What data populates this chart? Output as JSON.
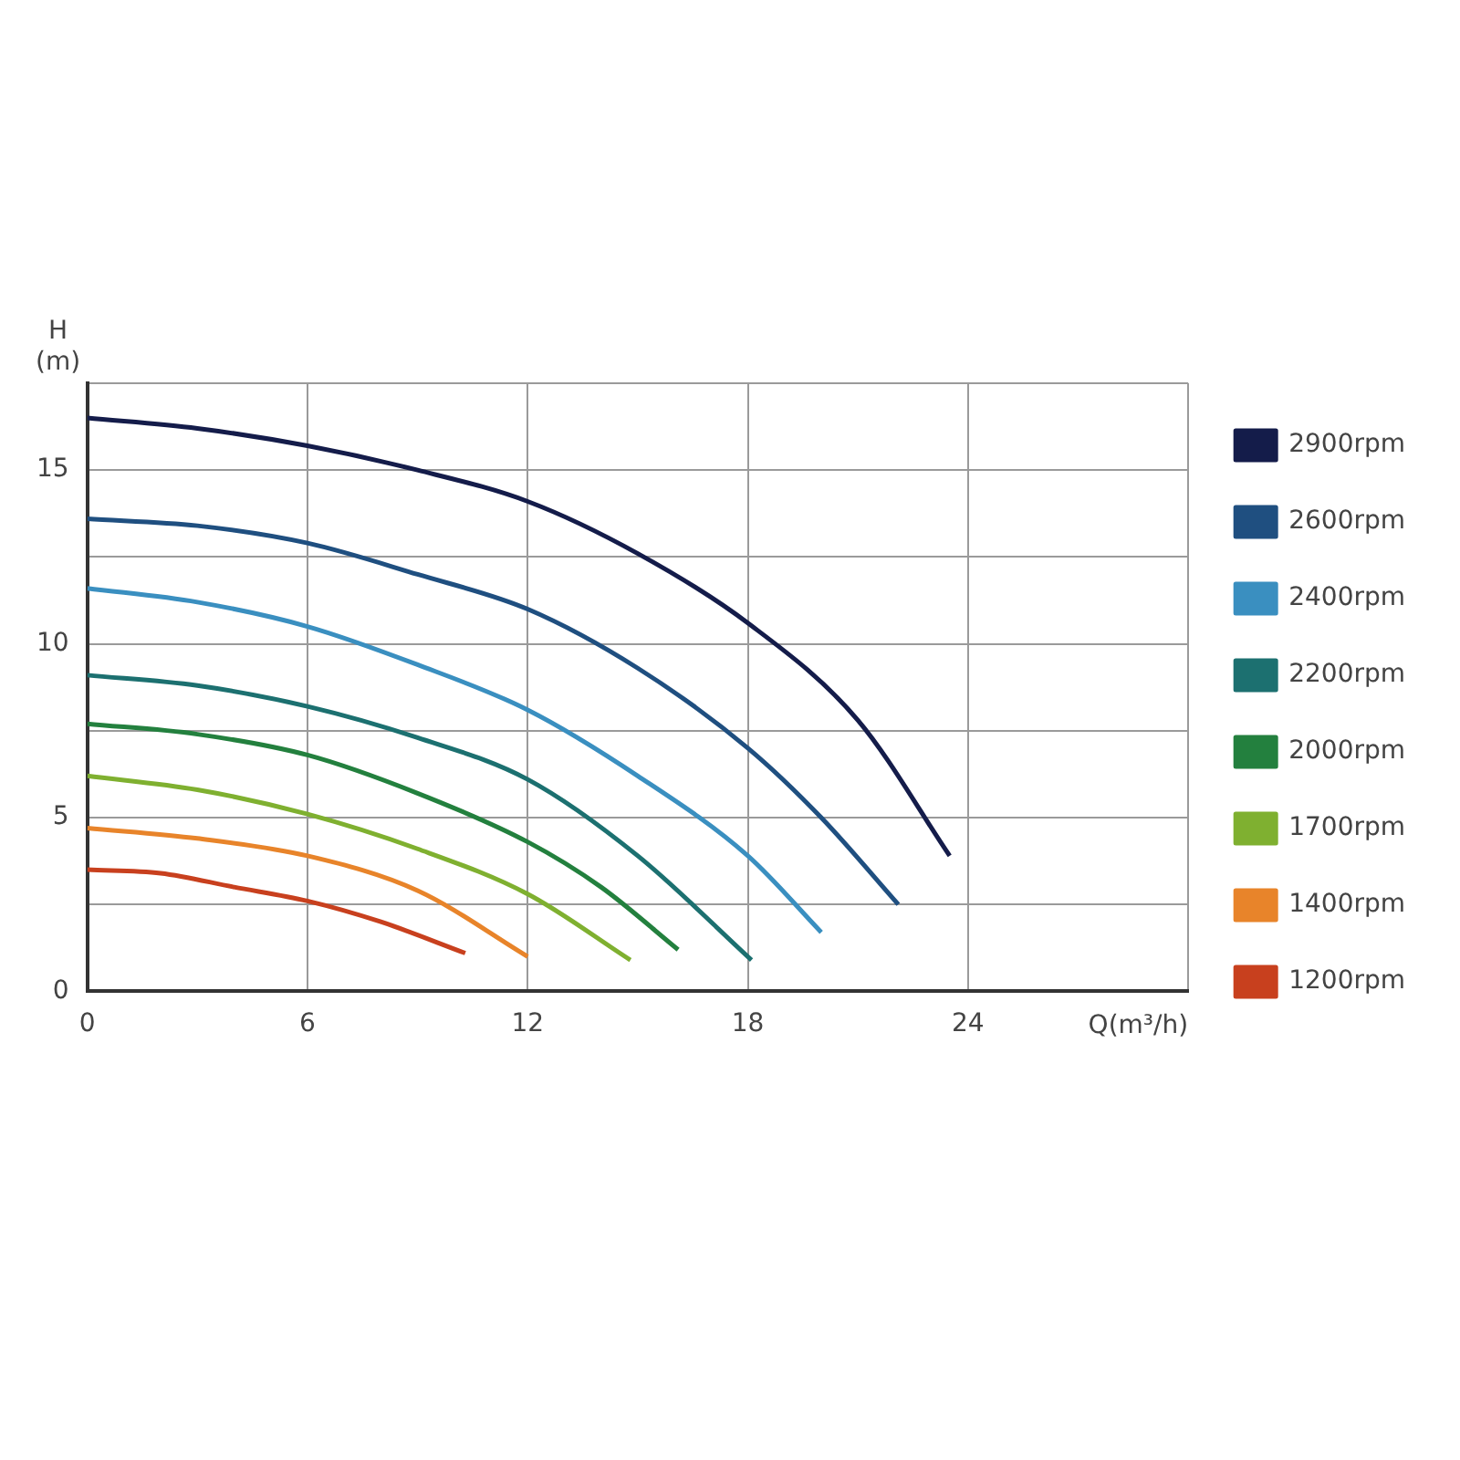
{
  "chart_data": {
    "type": "line",
    "xlabel": "Q(m³/h)",
    "ylabel": "H (m)",
    "xlim": [
      0,
      30
    ],
    "ylim": [
      0,
      17.5
    ],
    "xticks": [
      0,
      6,
      12,
      18,
      24,
      {
        "value": 30,
        "label": null
      }
    ],
    "yticks": [
      0,
      {
        "value": 2.5,
        "label": null
      },
      5,
      {
        "value": 7.5,
        "label": null
      },
      10,
      {
        "value": 12.5,
        "label": null
      },
      15,
      {
        "value": 17.5,
        "label": null
      }
    ],
    "grid": true,
    "legend": "right",
    "marker": "none",
    "line_style": "solid",
    "series": [
      {
        "name": "2900rpm",
        "color": "#141c4a",
        "x": [
          0,
          3,
          6,
          9,
          12,
          15,
          18,
          21,
          23.5
        ],
        "values": [
          16.5,
          16.2,
          15.7,
          15.0,
          14.1,
          12.6,
          10.6,
          7.8,
          3.9
        ]
      },
      {
        "name": "2600rpm",
        "color": "#1f4f80",
        "x": [
          0,
          3,
          6,
          9,
          12,
          15,
          18,
          20,
          22.1
        ],
        "values": [
          13.6,
          13.4,
          12.9,
          12.0,
          11.0,
          9.3,
          7.0,
          5.0,
          2.5
        ]
      },
      {
        "name": "2400rpm",
        "color": "#3a8fc0",
        "x": [
          0,
          3,
          6,
          9,
          12,
          15,
          18,
          20
        ],
        "values": [
          11.6,
          11.2,
          10.5,
          9.4,
          8.1,
          6.2,
          3.9,
          1.7
        ]
      },
      {
        "name": "2200rpm",
        "color": "#1c7070",
        "x": [
          0,
          3,
          6,
          9,
          12,
          15,
          18.1
        ],
        "values": [
          9.1,
          8.8,
          8.2,
          7.3,
          6.1,
          3.9,
          0.9
        ]
      },
      {
        "name": "2000rpm",
        "color": "#23803e",
        "x": [
          0,
          3,
          6,
          9,
          12,
          14,
          16.1
        ],
        "values": [
          7.7,
          7.4,
          6.8,
          5.7,
          4.3,
          3.0,
          1.2
        ]
      },
      {
        "name": "1700rpm",
        "color": "#7fb030",
        "x": [
          0,
          3,
          6,
          9,
          12,
          14.8
        ],
        "values": [
          6.2,
          5.8,
          5.1,
          4.1,
          2.8,
          0.9
        ]
      },
      {
        "name": "1400rpm",
        "color": "#e8842a",
        "x": [
          0,
          3,
          6,
          9,
          12
        ],
        "values": [
          4.7,
          4.4,
          3.9,
          2.9,
          1.0
        ]
      },
      {
        "name": "1200rpm",
        "color": "#c8401e",
        "x": [
          0,
          2,
          4,
          6,
          8,
          10.3
        ],
        "values": [
          3.5,
          3.4,
          3.0,
          2.6,
          2.0,
          1.1
        ]
      }
    ]
  }
}
